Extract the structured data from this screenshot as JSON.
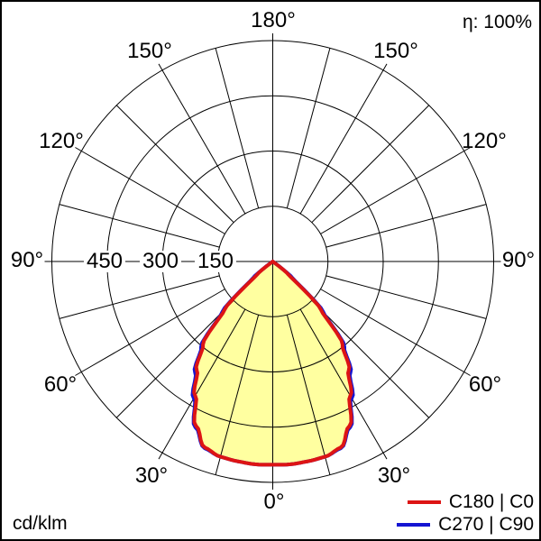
{
  "header": {
    "efficiency": "η: 100%"
  },
  "footer": {
    "units": "cd/klm"
  },
  "polar_axis": {
    "angle_labels": {
      "top": "180°",
      "bottom": "0°",
      "left": [
        "150°",
        "120°",
        "90°",
        "60°",
        "30°"
      ],
      "right": [
        "150°",
        "120°",
        "90°",
        "60°",
        "30°"
      ]
    },
    "radial_labels": [
      "450",
      "300",
      "150"
    ]
  },
  "legend": {
    "items": [
      {
        "label": "C180 | C0",
        "color": "#dd1414"
      },
      {
        "label": "C270 | C90",
        "color": "#1414d2"
      }
    ]
  },
  "chart_data": {
    "type": "line",
    "subtype": "polar-photometric-intensity",
    "units": "cd/klm",
    "efficiency_label": "η: 100%",
    "angle_axis": {
      "unit": "deg",
      "zero_position": "bottom",
      "label_step_deg": 30,
      "spoke_step_deg": 15,
      "labels": [
        "0°",
        "30°",
        "60°",
        "90°",
        "120°",
        "150°",
        "180°"
      ]
    },
    "radial_axis": {
      "min": 0,
      "max": 600,
      "step": 150,
      "tick_labels": [
        450,
        300,
        150
      ]
    },
    "gamma_deg": [
      0,
      5,
      10,
      15,
      20,
      25,
      30,
      35,
      40,
      45,
      50,
      55,
      60,
      65,
      70,
      75,
      80,
      85,
      90
    ],
    "series": [
      {
        "name": "C180 | C0",
        "color": "#dd1414",
        "values": [
          552,
          553,
          551,
          549,
          538,
          493,
          421,
          360,
          295,
          185,
          55,
          0,
          0,
          0,
          0,
          0,
          0,
          0,
          0
        ]
      },
      {
        "name": "C270 | C90",
        "color": "#1414d2",
        "values": [
          552,
          553,
          551,
          549,
          540,
          497,
          429,
          368,
          303,
          194,
          70,
          0,
          0,
          0,
          0,
          0,
          0,
          0,
          0
        ]
      }
    ],
    "fill_color": "#ffffa0",
    "grid": true,
    "legend_position": "bottom-right"
  }
}
